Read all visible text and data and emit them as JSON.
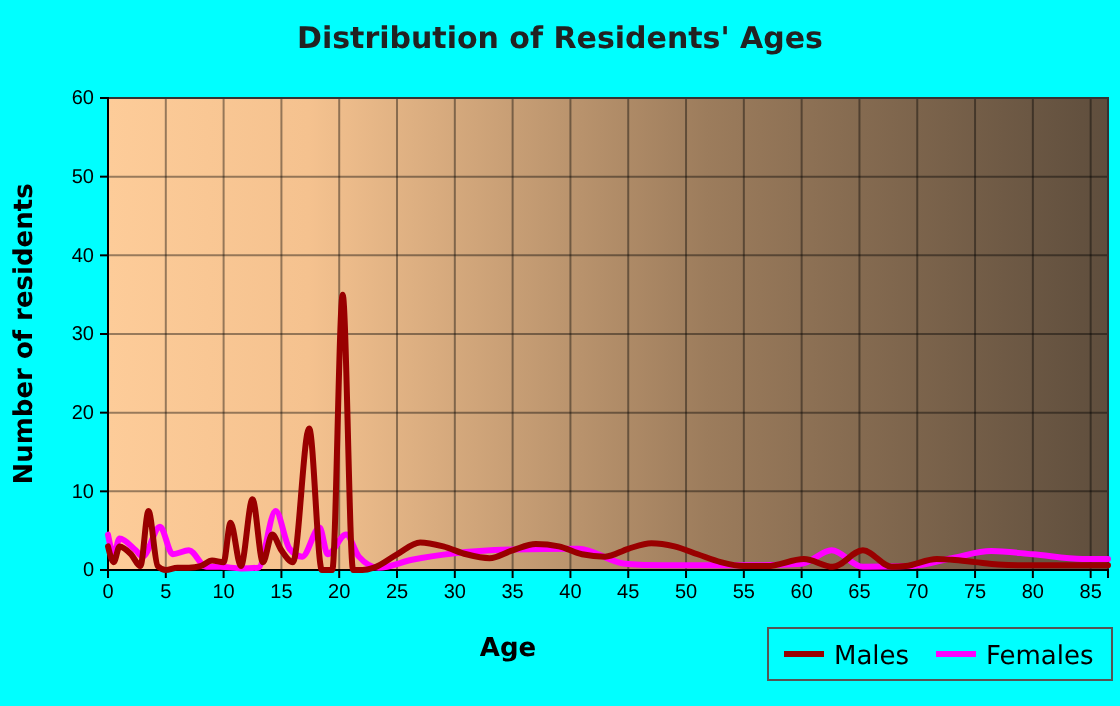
{
  "chart_data": {
    "type": "line",
    "title": "Distribution of Residents' Ages",
    "xlabel": "Age",
    "ylabel": "Number of residents",
    "xlim": [
      0,
      86.5
    ],
    "xticks": [
      0,
      5,
      10,
      15,
      20,
      25,
      30,
      35,
      40,
      45,
      50,
      55,
      60,
      65,
      70,
      75,
      80,
      85
    ],
    "ylim": [
      0,
      60
    ],
    "yticks": [
      0,
      10,
      20,
      30,
      40,
      50,
      60
    ],
    "grid": true,
    "legend": "bottom right",
    "series": [
      {
        "name": "Males",
        "color": "#990000",
        "x": [
          0,
          0.5,
          1,
          2,
          2.8,
          3.5,
          4.3,
          5,
          6,
          7,
          8,
          9,
          10,
          10.6,
          11.5,
          12.5,
          13.4,
          14.2,
          15,
          16,
          17.4,
          18.5,
          19.4,
          20.3,
          21.2,
          22,
          23,
          25,
          27,
          29,
          31,
          33,
          35,
          37,
          39,
          41,
          43,
          45,
          47,
          49,
          51,
          53,
          55,
          57,
          60.2,
          62.7,
          65.3,
          67.8,
          69,
          71.7,
          73,
          75,
          77,
          79,
          81,
          83,
          85,
          86.5
        ],
        "values": [
          3,
          1,
          3,
          2,
          0.5,
          7.5,
          0.5,
          0,
          0.3,
          0.3,
          0.5,
          1.2,
          1,
          6,
          0.5,
          9,
          1,
          4.5,
          2.5,
          1,
          18,
          0,
          0,
          35,
          0,
          0,
          0.3,
          2,
          3.5,
          3,
          2,
          1.5,
          2.5,
          3.3,
          3,
          2,
          1.7,
          2.7,
          3.4,
          3,
          2,
          1,
          0.5,
          0.5,
          1.4,
          0.4,
          2.5,
          0.4,
          0.5,
          1.4,
          1.3,
          1,
          0.7,
          0.6,
          0.6,
          0.6,
          0.6,
          0.6
        ]
      },
      {
        "name": "Females",
        "color": "#ff00ff",
        "x": [
          0,
          0.5,
          1,
          2.4,
          3,
          4.5,
          5.6,
          7,
          8.5,
          9.7,
          11.5,
          13,
          14.5,
          15.7,
          16.8,
          18.3,
          19,
          20.6,
          21.7,
          23.4,
          26.3,
          29.8,
          35,
          40.7,
          44.7,
          48,
          52,
          56,
          60,
          62.6,
          65.3,
          69.5,
          73,
          76.4,
          80,
          84.3,
          86.5
        ],
        "values": [
          4.5,
          2,
          4,
          2.5,
          1.7,
          5.5,
          2,
          2.5,
          0.4,
          0.4,
          0.2,
          0.3,
          7.5,
          2.7,
          1.7,
          5.4,
          2,
          4.5,
          1.7,
          0.3,
          1.3,
          2.1,
          2.6,
          2.7,
          0.8,
          0.6,
          0.6,
          0.6,
          0.8,
          2.5,
          0.4,
          0.5,
          1.5,
          2.4,
          2,
          1.4,
          1.4
        ]
      }
    ]
  }
}
